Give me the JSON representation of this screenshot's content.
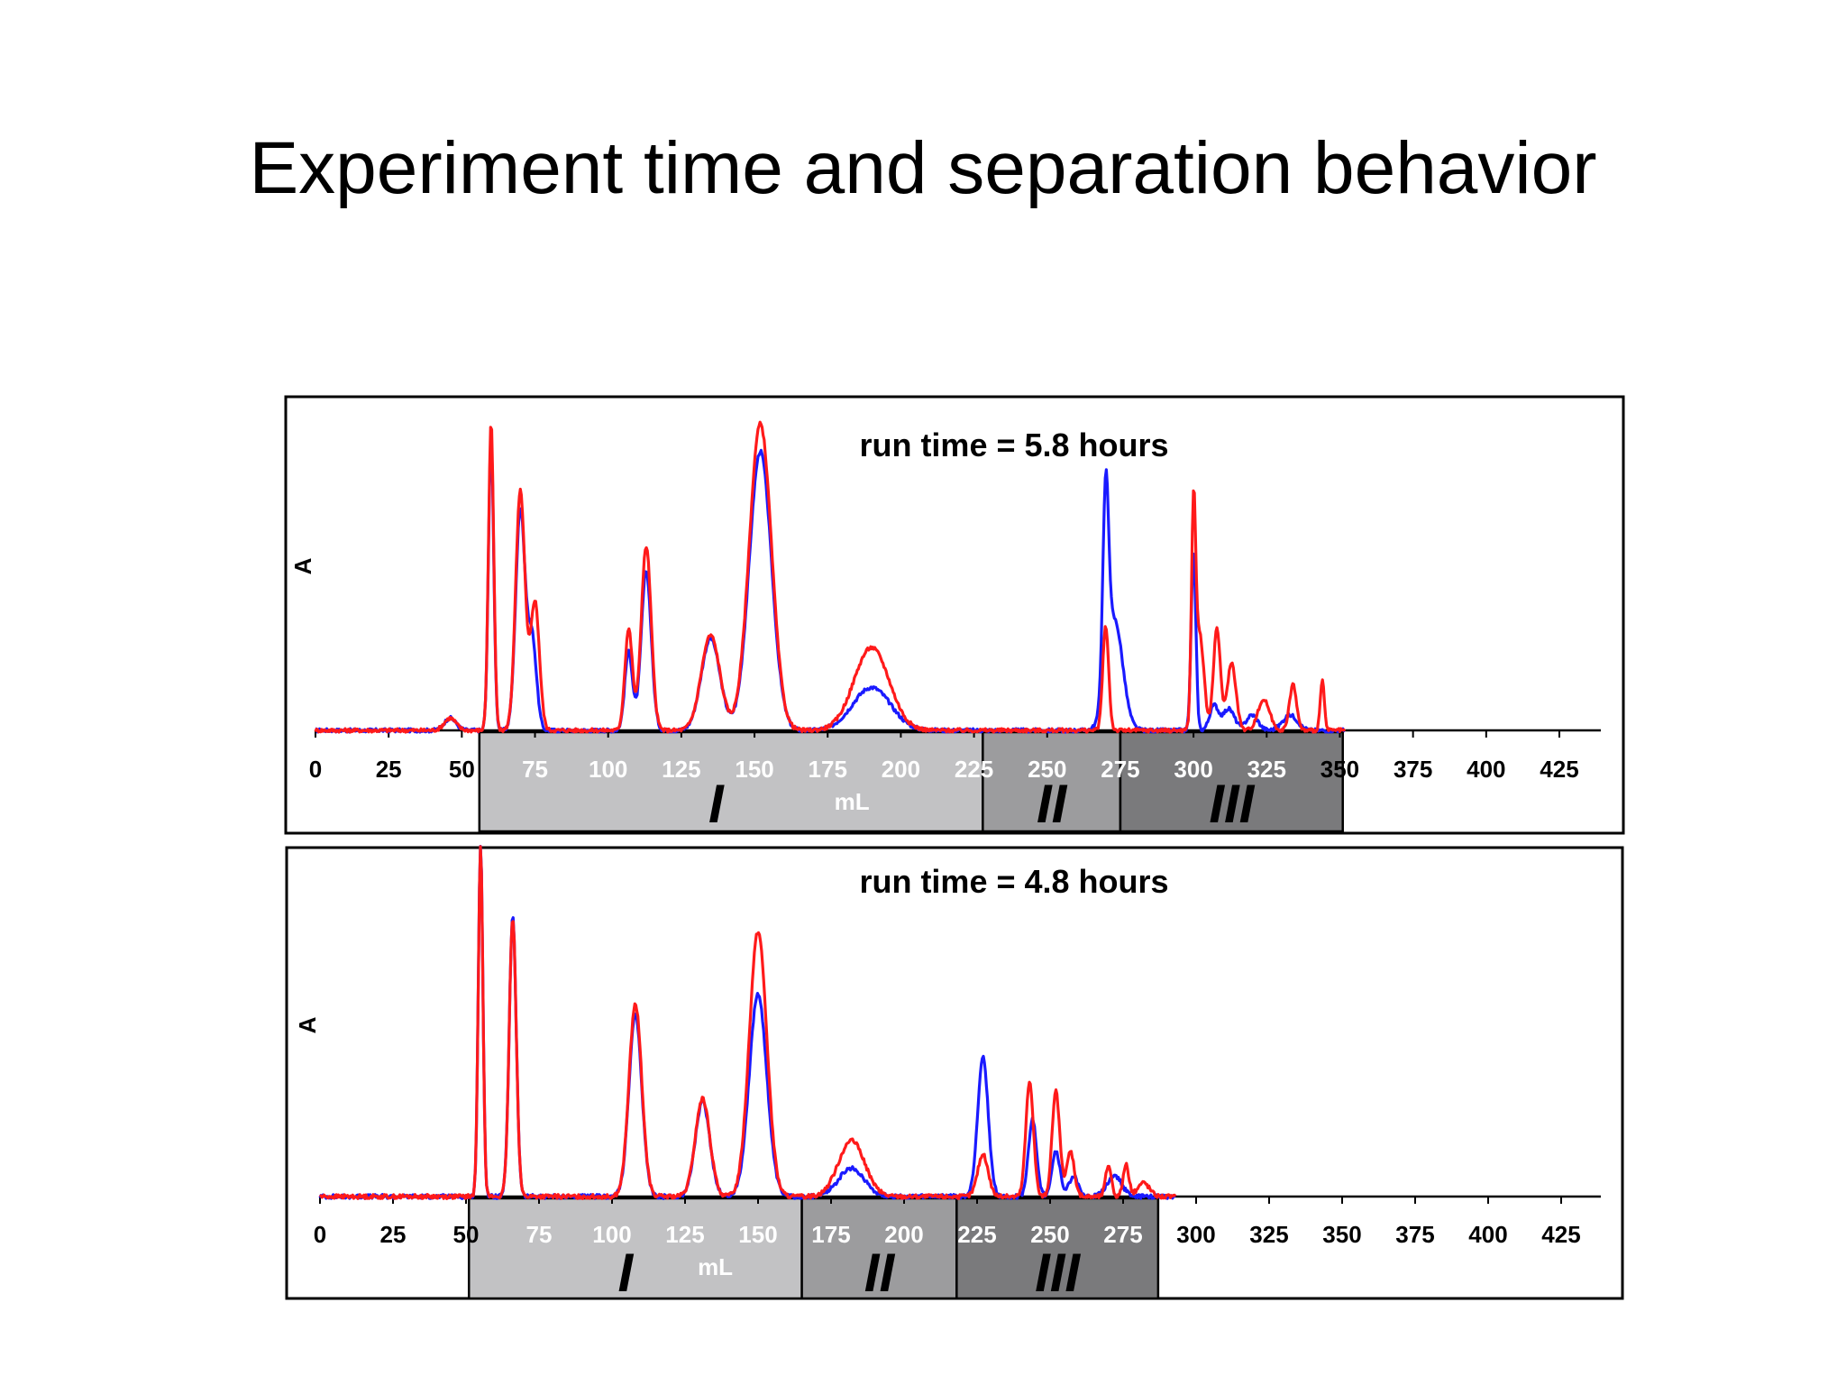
{
  "slide": {
    "title": "Experiment time and separation behavior"
  },
  "colors": {
    "series_a": "#1a1aff",
    "series_b": "#ff1a1a",
    "region_I": "#c2c2c4",
    "region_II": "#9c9c9e",
    "region_III": "#7a7a7c"
  },
  "chart_data": [
    {
      "type": "line",
      "title": "run time = 5.8 hours",
      "xlabel": "mL",
      "ylabel": "A",
      "xlim": [
        0,
        440
      ],
      "ylim": [
        0,
        1
      ],
      "xticks": [
        0,
        25,
        50,
        75,
        100,
        125,
        150,
        175,
        200,
        225,
        250,
        275,
        300,
        325,
        350,
        375,
        400,
        425
      ],
      "regions": [
        {
          "label": "I",
          "start": 56,
          "end": 228
        },
        {
          "label": "II",
          "start": 228,
          "end": 275
        },
        {
          "label": "III",
          "start": 275,
          "end": 351
        }
      ],
      "x_end": 352,
      "series": [
        {
          "name": "blue",
          "color": "#1a1aff",
          "peaks": [
            [
              46,
              0.04,
              2
            ],
            [
              60,
              0.95,
              0.9
            ],
            [
              70,
              0.72,
              1.6
            ],
            [
              74,
              0.3,
              1.5
            ],
            [
              107,
              0.26,
              1.3
            ],
            [
              113,
              0.52,
              1.7
            ],
            [
              135,
              0.3,
              3.2
            ],
            [
              152,
              0.91,
              3.8
            ],
            [
              190,
              0.14,
              6.5
            ],
            [
              270,
              0.64,
              1.0
            ],
            [
              273,
              0.36,
              2.8
            ],
            [
              300,
              0.58,
              0.8
            ],
            [
              307,
              0.08,
              1.5
            ],
            [
              312,
              0.07,
              2
            ],
            [
              320,
              0.05,
              2
            ],
            [
              333,
              0.05,
              2.5
            ]
          ]
        },
        {
          "name": "red",
          "color": "#ff1a1a",
          "peaks": [
            [
              46,
              0.04,
              2
            ],
            [
              60,
              1.0,
              0.9
            ],
            [
              70,
              0.78,
              1.6
            ],
            [
              75,
              0.42,
              1.5
            ],
            [
              107,
              0.33,
              1.3
            ],
            [
              113,
              0.6,
              1.7
            ],
            [
              135,
              0.31,
              3.2
            ],
            [
              152,
              1.0,
              3.8
            ],
            [
              190,
              0.27,
              6.0
            ],
            [
              270,
              0.34,
              1.0
            ],
            [
              300,
              0.66,
              0.7
            ],
            [
              302,
              0.32,
              1.5
            ],
            [
              308,
              0.33,
              1.2
            ],
            [
              313,
              0.22,
              1.5
            ],
            [
              324,
              0.1,
              2
            ],
            [
              334,
              0.15,
              1.2
            ],
            [
              344,
              0.16,
              0.7
            ]
          ]
        }
      ]
    },
    {
      "type": "line",
      "title": "run time = 4.8 hours",
      "xlabel": "mL",
      "ylabel": "A",
      "xlim": [
        0,
        440
      ],
      "ylim": [
        0,
        1
      ],
      "xticks": [
        0,
        25,
        50,
        75,
        100,
        125,
        150,
        175,
        200,
        225,
        250,
        275,
        300,
        325,
        350,
        375,
        400,
        425
      ],
      "regions": [
        {
          "label": "I",
          "start": 51,
          "end": 165
        },
        {
          "label": "II",
          "start": 165,
          "end": 218
        },
        {
          "label": "III",
          "start": 218,
          "end": 287
        }
      ],
      "x_end": 293,
      "series": [
        {
          "name": "blue",
          "color": "#1a1aff",
          "peaks": [
            [
              55,
              1.0,
              0.8
            ],
            [
              66,
              0.8,
              1.2
            ],
            [
              108,
              0.52,
              2.2
            ],
            [
              131,
              0.27,
              2.5
            ],
            [
              150,
              0.58,
              3.0
            ],
            [
              182,
              0.08,
              4.5
            ],
            [
              227,
              0.4,
              1.8
            ],
            [
              244,
              0.22,
              1.4
            ],
            [
              252,
              0.13,
              1.4
            ],
            [
              258,
              0.06,
              1.5
            ],
            [
              272,
              0.06,
              2.5
            ]
          ]
        },
        {
          "name": "red",
          "color": "#ff1a1a",
          "peaks": [
            [
              55,
              1.0,
              0.8
            ],
            [
              66,
              0.8,
              1.2
            ],
            [
              108,
              0.55,
              2.2
            ],
            [
              131,
              0.28,
              2.5
            ],
            [
              150,
              0.76,
              3.0
            ],
            [
              182,
              0.16,
              4.5
            ],
            [
              227,
              0.12,
              1.8
            ],
            [
              243,
              0.33,
              1.3
            ],
            [
              252,
              0.3,
              1.3
            ],
            [
              257,
              0.13,
              1.3
            ],
            [
              270,
              0.09,
              1.0
            ],
            [
              276,
              0.09,
              1.0
            ],
            [
              282,
              0.04,
              2
            ]
          ]
        }
      ]
    }
  ]
}
